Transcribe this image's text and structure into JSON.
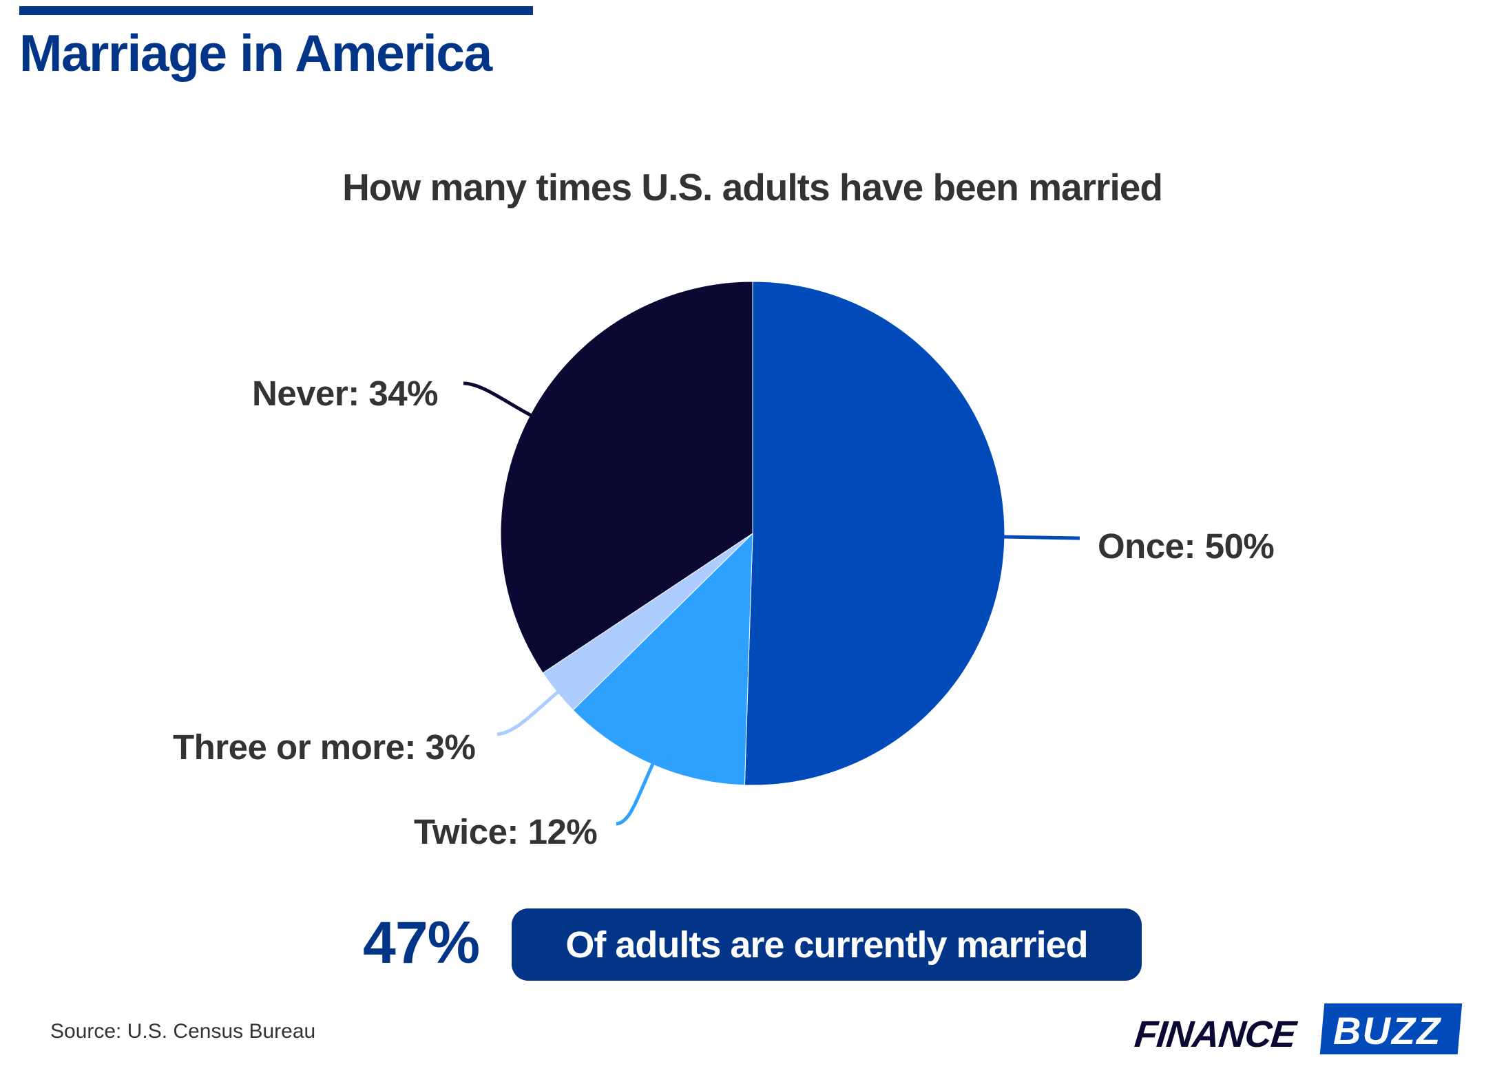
{
  "header": {
    "title": "Marriage in America",
    "bar_color": "#023588"
  },
  "chart_data": {
    "type": "pie",
    "title": "How many times U.S. adults have been married",
    "categories": [
      "Once",
      "Twice",
      "Three or more",
      "Never"
    ],
    "values": [
      50,
      12,
      3,
      34
    ],
    "unit": "%",
    "colors": [
      "#004aba",
      "#2ea1ff",
      "#adcdff",
      "#0b0933"
    ],
    "start_angle_deg": 0,
    "direction": "clockwise",
    "labels": [
      "Once: 50%",
      "Twice: 12%",
      "Three or more: 3%",
      "Never: 34%"
    ],
    "legend": "none (direct labels with leader lines)"
  },
  "labels": {
    "once": "Once: 50%",
    "twice": "Twice: 12%",
    "three": "Three or more: 3%",
    "never": "Never: 34%"
  },
  "stat": {
    "value": "47%",
    "text": "Of adults are currently married"
  },
  "footer": {
    "source": "Source: U.S. Census Bureau",
    "logo_left": "FINANCE",
    "logo_right": "BUZZ"
  }
}
